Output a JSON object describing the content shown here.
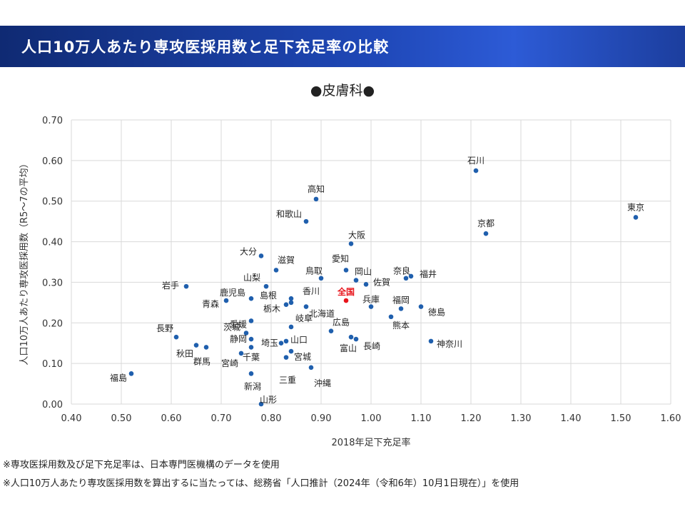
{
  "banner": {
    "title": "人口10万人あたり専攻医採用数と足下充足率の比較"
  },
  "notes": [
    "※専攻医採用数及び足下充足率は、日本専門医機構のデータを使用",
    "※人口10万人あたり専攻医採用数を算出するに当たっては、総務省「人口推計（2024年（令和6年）10月1日現在）」を使用"
  ],
  "chart_data": {
    "type": "scatter",
    "title": "●皮膚科●",
    "xlabel": "2018年足下充足率",
    "ylabel": "人口10万人あたり専攻医採用数（R5～7の平均）",
    "xlim": [
      0.4,
      1.6
    ],
    "ylim": [
      0,
      0.7
    ],
    "xticks": [
      "0.40",
      "0.50",
      "0.60",
      "0.70",
      "0.80",
      "0.90",
      "1.00",
      "1.10",
      "1.20",
      "1.30",
      "1.40",
      "1.50",
      "1.60"
    ],
    "yticks": [
      "0.00",
      "0.10",
      "0.20",
      "0.30",
      "0.40",
      "0.50",
      "0.60",
      "0.70"
    ],
    "grid": true,
    "legend": "none",
    "point_color": "#1f5fad",
    "highlight_color": "#e8141b",
    "points": [
      {
        "label": "東京",
        "x": 1.53,
        "y": 0.46
      },
      {
        "label": "石川",
        "x": 1.21,
        "y": 0.575
      },
      {
        "label": "京都",
        "x": 1.23,
        "y": 0.42
      },
      {
        "label": "高知",
        "x": 0.89,
        "y": 0.505
      },
      {
        "label": "和歌山",
        "x": 0.87,
        "y": 0.45
      },
      {
        "label": "大阪",
        "x": 0.96,
        "y": 0.395
      },
      {
        "label": "大分",
        "x": 0.78,
        "y": 0.365
      },
      {
        "label": "滋賀",
        "x": 0.81,
        "y": 0.33
      },
      {
        "label": "愛知",
        "x": 0.95,
        "y": 0.33
      },
      {
        "label": "鳥取",
        "x": 0.9,
        "y": 0.31
      },
      {
        "label": "岡山",
        "x": 0.97,
        "y": 0.305
      },
      {
        "label": "佐賀",
        "x": 0.99,
        "y": 0.295
      },
      {
        "label": "奈良",
        "x": 1.07,
        "y": 0.31
      },
      {
        "label": "福井",
        "x": 1.08,
        "y": 0.315
      },
      {
        "label": "山梨",
        "x": 0.79,
        "y": 0.29
      },
      {
        "label": "岩手",
        "x": 0.63,
        "y": 0.29
      },
      {
        "label": "鹿児島",
        "x": 0.76,
        "y": 0.26
      },
      {
        "label": "島根",
        "x": 0.84,
        "y": 0.25
      },
      {
        "label": "香川",
        "x": 0.84,
        "y": 0.26
      },
      {
        "label": "全国",
        "x": 0.95,
        "y": 0.255,
        "highlight": true
      },
      {
        "label": "兵庫",
        "x": 1.0,
        "y": 0.24
      },
      {
        "label": "青森",
        "x": 0.71,
        "y": 0.255
      },
      {
        "label": "栃木",
        "x": 0.83,
        "y": 0.245
      },
      {
        "label": "北海道",
        "x": 0.87,
        "y": 0.24
      },
      {
        "label": "福岡",
        "x": 1.06,
        "y": 0.235
      },
      {
        "label": "徳島",
        "x": 1.1,
        "y": 0.24
      },
      {
        "label": "愛媛",
        "x": 0.76,
        "y": 0.205
      },
      {
        "label": "熊本",
        "x": 1.04,
        "y": 0.215
      },
      {
        "label": "岐阜",
        "x": 0.84,
        "y": 0.19
      },
      {
        "label": "広島",
        "x": 0.92,
        "y": 0.18
      },
      {
        "label": "茨城",
        "x": 0.75,
        "y": 0.175
      },
      {
        "label": "長野",
        "x": 0.61,
        "y": 0.165
      },
      {
        "label": "富山",
        "x": 0.96,
        "y": 0.165
      },
      {
        "label": "長崎",
        "x": 0.97,
        "y": 0.16
      },
      {
        "label": "静岡",
        "x": 0.76,
        "y": 0.16
      },
      {
        "label": "埼玉",
        "x": 0.82,
        "y": 0.15
      },
      {
        "label": "山口",
        "x": 0.83,
        "y": 0.155
      },
      {
        "label": "神奈川",
        "x": 1.12,
        "y": 0.155
      },
      {
        "label": "秋田",
        "x": 0.65,
        "y": 0.145
      },
      {
        "label": "群馬",
        "x": 0.67,
        "y": 0.14
      },
      {
        "label": "宮城",
        "x": 0.84,
        "y": 0.13
      },
      {
        "label": "千葉",
        "x": 0.76,
        "y": 0.14
      },
      {
        "label": "宮崎",
        "x": 0.74,
        "y": 0.125
      },
      {
        "label": "三重",
        "x": 0.83,
        "y": 0.115
      },
      {
        "label": "沖縄",
        "x": 0.88,
        "y": 0.09
      },
      {
        "label": "新潟",
        "x": 0.76,
        "y": 0.075
      },
      {
        "label": "福島",
        "x": 0.52,
        "y": 0.075
      },
      {
        "label": "山形",
        "x": 0.78,
        "y": 0.0
      }
    ]
  }
}
